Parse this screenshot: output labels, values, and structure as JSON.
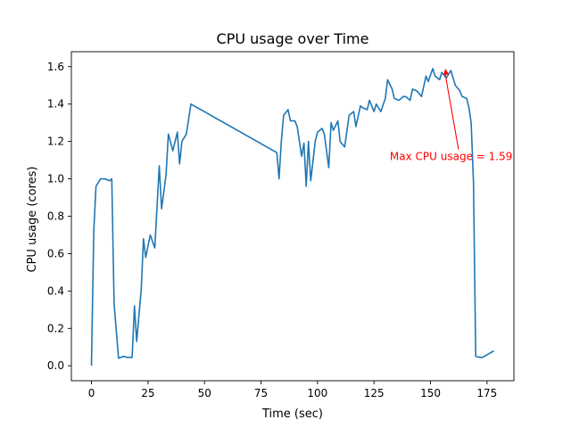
{
  "chart_data": {
    "type": "line",
    "title": "CPU usage over Time",
    "xlabel": "Time (sec)",
    "ylabel": "CPU usage (cores)",
    "xlim": [
      -8.9,
      186.9
    ],
    "ylim": [
      -0.08,
      1.68
    ],
    "xticks": [
      0,
      25,
      50,
      75,
      100,
      125,
      150,
      175
    ],
    "yticks": [
      0.0,
      0.2,
      0.4,
      0.6,
      0.8,
      1.0,
      1.2,
      1.4,
      1.6
    ],
    "xtick_labels": [
      "0",
      "25",
      "50",
      "75",
      "100",
      "125",
      "150",
      "175"
    ],
    "ytick_labels": [
      "0.0",
      "0.2",
      "0.4",
      "0.6",
      "0.8",
      "1.0",
      "1.2",
      "1.4",
      "1.6"
    ],
    "grid": false,
    "series": [
      {
        "color": "#1f77b4",
        "points": [
          [
            0,
            0.0
          ],
          [
            1,
            0.72
          ],
          [
            2,
            0.96
          ],
          [
            4,
            1.0
          ],
          [
            6,
            1.0
          ],
          [
            8,
            0.99
          ],
          [
            9,
            1.0
          ],
          [
            10,
            0.33
          ],
          [
            12,
            0.04
          ],
          [
            14,
            0.05
          ],
          [
            16,
            0.045
          ],
          [
            18,
            0.045
          ],
          [
            19,
            0.32
          ],
          [
            20,
            0.13
          ],
          [
            22,
            0.41
          ],
          [
            23,
            0.68
          ],
          [
            24,
            0.58
          ],
          [
            26,
            0.7
          ],
          [
            28,
            0.63
          ],
          [
            30,
            1.07
          ],
          [
            31,
            0.84
          ],
          [
            33,
            1.02
          ],
          [
            34,
            1.24
          ],
          [
            36,
            1.15
          ],
          [
            38,
            1.25
          ],
          [
            39,
            1.08
          ],
          [
            40,
            1.2
          ],
          [
            42,
            1.24
          ],
          [
            44,
            1.4
          ],
          [
            82,
            1.14
          ],
          [
            83,
            1.0
          ],
          [
            84,
            1.2
          ],
          [
            85,
            1.34
          ],
          [
            87,
            1.37
          ],
          [
            88,
            1.31
          ],
          [
            90,
            1.31
          ],
          [
            91,
            1.28
          ],
          [
            93,
            1.12
          ],
          [
            94,
            1.19
          ],
          [
            95,
            0.96
          ],
          [
            96,
            1.2
          ],
          [
            97,
            0.99
          ],
          [
            99,
            1.2
          ],
          [
            100,
            1.25
          ],
          [
            102,
            1.27
          ],
          [
            103,
            1.24
          ],
          [
            105,
            1.06
          ],
          [
            106,
            1.3
          ],
          [
            107,
            1.26
          ],
          [
            109,
            1.31
          ],
          [
            110,
            1.2
          ],
          [
            112,
            1.17
          ],
          [
            114,
            1.34
          ],
          [
            116,
            1.36
          ],
          [
            117,
            1.28
          ],
          [
            119,
            1.39
          ],
          [
            120,
            1.38
          ],
          [
            122,
            1.37
          ],
          [
            123,
            1.42
          ],
          [
            125,
            1.36
          ],
          [
            126,
            1.4
          ],
          [
            128,
            1.36
          ],
          [
            130,
            1.43
          ],
          [
            131,
            1.53
          ],
          [
            133,
            1.48
          ],
          [
            134,
            1.43
          ],
          [
            136,
            1.42
          ],
          [
            138,
            1.44
          ],
          [
            139,
            1.44
          ],
          [
            141,
            1.42
          ],
          [
            142,
            1.48
          ],
          [
            144,
            1.47
          ],
          [
            146,
            1.44
          ],
          [
            148,
            1.55
          ],
          [
            149,
            1.52
          ],
          [
            151,
            1.59
          ],
          [
            152,
            1.55
          ],
          [
            154,
            1.53
          ],
          [
            155,
            1.57
          ],
          [
            157,
            1.54
          ],
          [
            159,
            1.58
          ],
          [
            161,
            1.5
          ],
          [
            163,
            1.47
          ],
          [
            164,
            1.44
          ],
          [
            166,
            1.43
          ],
          [
            167,
            1.38
          ],
          [
            168,
            1.3
          ],
          [
            169,
            0.98
          ],
          [
            170,
            0.05
          ],
          [
            172,
            0.045
          ],
          [
            173,
            0.045
          ],
          [
            178,
            0.08
          ]
        ]
      }
    ],
    "annotations": [
      {
        "text": "Max CPU usage = 1.59",
        "color": "#ff0000",
        "xy": [
          156.5,
          1.59
        ],
        "xytext": [
          132,
          1.1
        ]
      }
    ]
  }
}
